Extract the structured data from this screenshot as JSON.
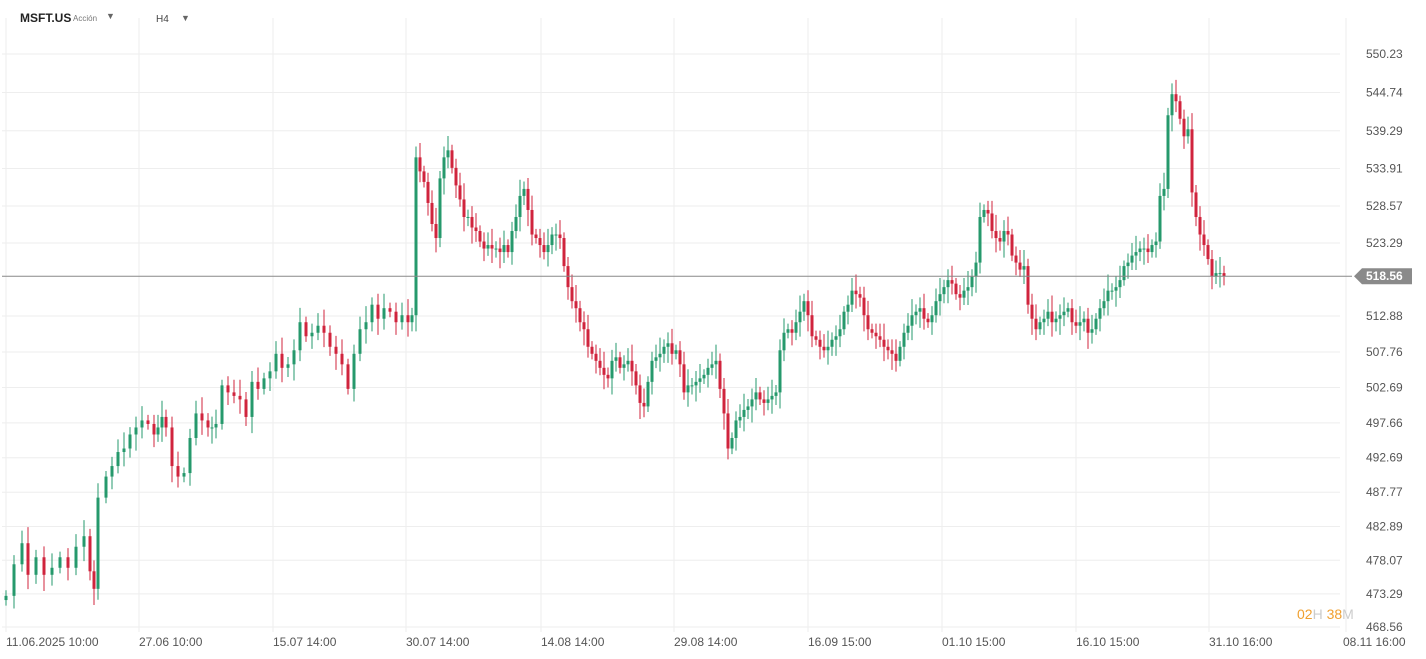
{
  "header": {
    "symbol": "MSFT.US",
    "symbol_type": "Acción",
    "timeframe": "H4"
  },
  "countdown": {
    "hours": "02",
    "hours_unit": "H",
    "minutes": "38",
    "minutes_unit": "M"
  },
  "colors": {
    "up": "#26996c",
    "down": "#d0243d",
    "grid": "#eeeeee",
    "price_line": "#888888",
    "price_tag": "#8a8a8a"
  },
  "chart_data": {
    "type": "candlestick",
    "ylim": [
      468.56,
      555.0
    ],
    "y_ticks": [
      "550.23",
      "544.74",
      "539.29",
      "533.91",
      "528.57",
      "523.29",
      "518.56",
      "512.88",
      "507.76",
      "502.69",
      "497.66",
      "492.69",
      "487.77",
      "482.89",
      "478.07",
      "473.29",
      "468.56"
    ],
    "x_ticks": [
      "11.06.2025  10:00",
      "27.06  10:00",
      "15.07  14:00",
      "30.07  14:00",
      "14.08  14:00",
      "29.08  14:00",
      "16.09  15:00",
      "01.10  15:00",
      "16.10  15:00",
      "31.10  16:00",
      "08.11  16:00"
    ],
    "current_price": "518.56",
    "close_points": [
      [
        0,
        473.0
      ],
      [
        8,
        477.5
      ],
      [
        16,
        480.5
      ],
      [
        22,
        476.0
      ],
      [
        30,
        478.5
      ],
      [
        38,
        476.0
      ],
      [
        46,
        477.0
      ],
      [
        54,
        478.5
      ],
      [
        62,
        477.0
      ],
      [
        70,
        480.0
      ],
      [
        78,
        481.5
      ],
      [
        84,
        476.5
      ],
      [
        88,
        474.0
      ],
      [
        92,
        487.0
      ],
      [
        100,
        490.0
      ],
      [
        106,
        491.5
      ],
      [
        112,
        493.5
      ],
      [
        118,
        494.0
      ],
      [
        124,
        496.0
      ],
      [
        130,
        497.0
      ],
      [
        136,
        498.0
      ],
      [
        142,
        497.5
      ],
      [
        148,
        496.0
      ],
      [
        152,
        497.0
      ],
      [
        156,
        498.5
      ],
      [
        160,
        497.0
      ],
      [
        166,
        491.5
      ],
      [
        172,
        490.0
      ],
      [
        178,
        490.5
      ],
      [
        184,
        495.5
      ],
      [
        190,
        499.0
      ],
      [
        196,
        498.0
      ],
      [
        202,
        497.0
      ],
      [
        206,
        497.0
      ],
      [
        210,
        497.5
      ],
      [
        216,
        503.0
      ],
      [
        222,
        502.0
      ],
      [
        228,
        501.5
      ],
      [
        234,
        501.0
      ],
      [
        240,
        498.5
      ],
      [
        246,
        503.5
      ],
      [
        252,
        502.5
      ],
      [
        258,
        504.0
      ],
      [
        264,
        505.0
      ],
      [
        270,
        507.5
      ],
      [
        276,
        505.5
      ],
      [
        282,
        506.0
      ],
      [
        288,
        508.0
      ],
      [
        294,
        512.0
      ],
      [
        300,
        510.0
      ],
      [
        306,
        510.5
      ],
      [
        312,
        511.5
      ],
      [
        318,
        510.5
      ],
      [
        324,
        508.5
      ],
      [
        330,
        507.5
      ],
      [
        336,
        506.0
      ],
      [
        342,
        502.5
      ],
      [
        348,
        507.5
      ],
      [
        354,
        511.0
      ],
      [
        360,
        512.0
      ],
      [
        366,
        514.5
      ],
      [
        372,
        512.5
      ],
      [
        378,
        514.0
      ],
      [
        384,
        513.5
      ],
      [
        390,
        512.0
      ],
      [
        396,
        513.0
      ],
      [
        402,
        512.0
      ],
      [
        406,
        513.0
      ],
      [
        410,
        535.5
      ],
      [
        414,
        533.5
      ],
      [
        418,
        532.0
      ],
      [
        422,
        529.0
      ],
      [
        426,
        526.0
      ],
      [
        430,
        524.0
      ],
      [
        434,
        532.5
      ],
      [
        438,
        535.5
      ],
      [
        442,
        536.5
      ],
      [
        446,
        534.0
      ],
      [
        450,
        531.5
      ],
      [
        454,
        529.5
      ],
      [
        458,
        527.0
      ],
      [
        462,
        527.0
      ],
      [
        466,
        525.5
      ],
      [
        470,
        525.0
      ],
      [
        474,
        523.5
      ],
      [
        478,
        522.5
      ],
      [
        482,
        523.0
      ],
      [
        486,
        522.5
      ],
      [
        490,
        522.5
      ],
      [
        494,
        522.0
      ],
      [
        498,
        523.0
      ],
      [
        502,
        522.0
      ],
      [
        506,
        525.0
      ],
      [
        510,
        527.0
      ],
      [
        514,
        530.0
      ],
      [
        518,
        531.0
      ],
      [
        522,
        528.0
      ],
      [
        526,
        524.5
      ],
      [
        530,
        524.0
      ],
      [
        534,
        523.0
      ],
      [
        538,
        522.0
      ],
      [
        542,
        523.0
      ],
      [
        546,
        524.5
      ],
      [
        550,
        524.5
      ],
      [
        554,
        524.0
      ],
      [
        558,
        520.0
      ],
      [
        562,
        517.0
      ],
      [
        566,
        515.0
      ],
      [
        570,
        514.0
      ],
      [
        574,
        512.0
      ],
      [
        578,
        511.0
      ],
      [
        582,
        508.5
      ],
      [
        586,
        507.5
      ],
      [
        590,
        506.5
      ],
      [
        594,
        505.5
      ],
      [
        598,
        504.5
      ],
      [
        602,
        504.0
      ],
      [
        606,
        506.5
      ],
      [
        610,
        507.0
      ],
      [
        614,
        505.5
      ],
      [
        618,
        506.0
      ],
      [
        622,
        506.5
      ],
      [
        626,
        505.0
      ],
      [
        630,
        503.0
      ],
      [
        634,
        500.5
      ],
      [
        638,
        500.0
      ],
      [
        642,
        503.5
      ],
      [
        646,
        506.5
      ],
      [
        650,
        507.0
      ],
      [
        654,
        507.5
      ],
      [
        658,
        508.5
      ],
      [
        662,
        509.0
      ],
      [
        666,
        507.5
      ],
      [
        670,
        508.0
      ],
      [
        674,
        506.0
      ],
      [
        678,
        502.0
      ],
      [
        682,
        503.0
      ],
      [
        686,
        503.0
      ],
      [
        690,
        503.5
      ],
      [
        694,
        504.0
      ],
      [
        698,
        504.5
      ],
      [
        702,
        505.5
      ],
      [
        706,
        506.0
      ],
      [
        710,
        506.5
      ],
      [
        714,
        502.5
      ],
      [
        718,
        499.0
      ],
      [
        722,
        494.0
      ],
      [
        726,
        495.5
      ],
      [
        730,
        498.0
      ],
      [
        734,
        498.5
      ],
      [
        738,
        499.5
      ],
      [
        742,
        500.0
      ],
      [
        746,
        501.0
      ],
      [
        750,
        502.0
      ],
      [
        754,
        501.0
      ],
      [
        758,
        500.5
      ],
      [
        762,
        501.0
      ],
      [
        766,
        501.5
      ],
      [
        770,
        502.0
      ],
      [
        774,
        508.0
      ],
      [
        778,
        510.5
      ],
      [
        782,
        511.0
      ],
      [
        786,
        510.5
      ],
      [
        790,
        512.0
      ],
      [
        794,
        513.5
      ],
      [
        798,
        515.0
      ],
      [
        802,
        513.0
      ],
      [
        806,
        510.0
      ],
      [
        810,
        509.5
      ],
      [
        814,
        508.5
      ],
      [
        818,
        508.0
      ],
      [
        822,
        508.5
      ],
      [
        826,
        509.5
      ],
      [
        830,
        510.0
      ],
      [
        834,
        511.0
      ],
      [
        838,
        513.5
      ],
      [
        842,
        514.5
      ],
      [
        846,
        516.5
      ],
      [
        850,
        516.0
      ],
      [
        854,
        515.5
      ],
      [
        858,
        513.0
      ],
      [
        862,
        511.0
      ],
      [
        866,
        510.5
      ],
      [
        870,
        510.0
      ],
      [
        874,
        509.5
      ],
      [
        878,
        508.5
      ],
      [
        882,
        508.0
      ],
      [
        886,
        507.5
      ],
      [
        890,
        506.5
      ],
      [
        894,
        508.5
      ],
      [
        898,
        510.5
      ],
      [
        902,
        511.5
      ],
      [
        906,
        513.0
      ],
      [
        910,
        513.5
      ],
      [
        914,
        514.0
      ],
      [
        918,
        512.5
      ],
      [
        922,
        512.0
      ],
      [
        926,
        513.0
      ],
      [
        930,
        515.0
      ],
      [
        934,
        516.0
      ],
      [
        938,
        517.0
      ],
      [
        942,
        518.0
      ],
      [
        946,
        517.5
      ],
      [
        950,
        516.0
      ],
      [
        954,
        515.5
      ],
      [
        958,
        516.5
      ],
      [
        962,
        517.0
      ],
      [
        966,
        518.5
      ],
      [
        970,
        520.5
      ],
      [
        974,
        527.0
      ],
      [
        978,
        528.0
      ],
      [
        982,
        527.5
      ],
      [
        986,
        525.0
      ],
      [
        990,
        524.0
      ],
      [
        994,
        523.5
      ],
      [
        998,
        525.0
      ],
      [
        1002,
        524.5
      ],
      [
        1006,
        521.5
      ],
      [
        1010,
        520.5
      ],
      [
        1014,
        519.5
      ],
      [
        1018,
        520.0
      ],
      [
        1022,
        514.5
      ],
      [
        1026,
        512.5
      ],
      [
        1030,
        511.0
      ],
      [
        1034,
        512.0
      ],
      [
        1038,
        512.5
      ],
      [
        1042,
        513.5
      ],
      [
        1046,
        512.0
      ],
      [
        1050,
        512.5
      ],
      [
        1054,
        513.0
      ],
      [
        1058,
        513.5
      ],
      [
        1062,
        514.0
      ],
      [
        1066,
        512.0
      ],
      [
        1070,
        511.5
      ],
      [
        1074,
        512.0
      ],
      [
        1078,
        512.5
      ],
      [
        1082,
        510.5
      ],
      [
        1086,
        511.0
      ],
      [
        1090,
        512.5
      ],
      [
        1094,
        514.0
      ],
      [
        1098,
        515.0
      ],
      [
        1102,
        516.5
      ],
      [
        1106,
        516.5
      ],
      [
        1110,
        517.0
      ],
      [
        1114,
        518.0
      ],
      [
        1118,
        520.0
      ],
      [
        1122,
        520.5
      ],
      [
        1126,
        521.5
      ],
      [
        1130,
        522.0
      ],
      [
        1134,
        522.5
      ],
      [
        1138,
        522.5
      ],
      [
        1142,
        522.0
      ],
      [
        1146,
        523.0
      ],
      [
        1150,
        523.5
      ],
      [
        1154,
        530.0
      ],
      [
        1158,
        531.0
      ],
      [
        1162,
        541.5
      ],
      [
        1166,
        544.5
      ],
      [
        1170,
        543.5
      ],
      [
        1174,
        541.0
      ],
      [
        1178,
        538.5
      ],
      [
        1182,
        539.5
      ],
      [
        1186,
        530.5
      ],
      [
        1190,
        527.0
      ],
      [
        1194,
        524.5
      ],
      [
        1198,
        523.0
      ],
      [
        1202,
        521.0
      ],
      [
        1206,
        518.5
      ],
      [
        1210,
        519.0
      ],
      [
        1214,
        519.0
      ],
      [
        1218,
        518.56
      ]
    ]
  }
}
